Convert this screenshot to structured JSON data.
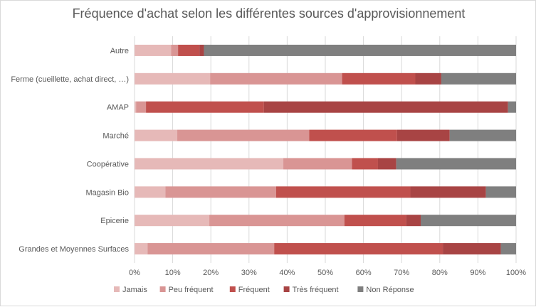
{
  "chart_data": {
    "type": "bar",
    "orientation": "horizontal",
    "stacked": "percent",
    "title": "Fréquence d'achat selon les différentes sources d'approvisionnement",
    "xlabel": "",
    "ylabel": "",
    "xlim": [
      0,
      100
    ],
    "x_ticks": [
      "0%",
      "10%",
      "20%",
      "30%",
      "40%",
      "50%",
      "60%",
      "70%",
      "80%",
      "90%",
      "100%"
    ],
    "grid": true,
    "legend_position": "bottom",
    "categories": [
      "Autre",
      "Ferme (cueillette, achat direct, …)",
      "AMAP",
      "Marché",
      "Coopérative",
      "Magasin Bio",
      "Epicerie",
      "Grandes et Moyennes Surfaces"
    ],
    "series": [
      {
        "name": "Jamais",
        "color": "#e6b9b8",
        "values": [
          9.6,
          19.8,
          0.4,
          11.2,
          39.0,
          8.1,
          19.6,
          3.4
        ]
      },
      {
        "name": "Peu fréquent",
        "color": "#d99594",
        "values": [
          1.8,
          34.6,
          2.6,
          34.6,
          18.0,
          29.0,
          35.4,
          33.2
        ]
      },
      {
        "name": "Fréquent",
        "color": "#c0504d",
        "values": [
          5.6,
          19.2,
          30.9,
          23.0,
          6.8,
          35.2,
          16.2,
          44.2
        ]
      },
      {
        "name": "Très fréquent",
        "color": "#a84444",
        "values": [
          1.2,
          6.8,
          64.0,
          13.8,
          4.8,
          19.8,
          3.8,
          15.2
        ]
      },
      {
        "name": "Non Réponse",
        "color": "#7f7f7f",
        "values": [
          81.8,
          19.6,
          2.1,
          17.4,
          31.4,
          7.9,
          25.0,
          4.0
        ]
      }
    ]
  }
}
